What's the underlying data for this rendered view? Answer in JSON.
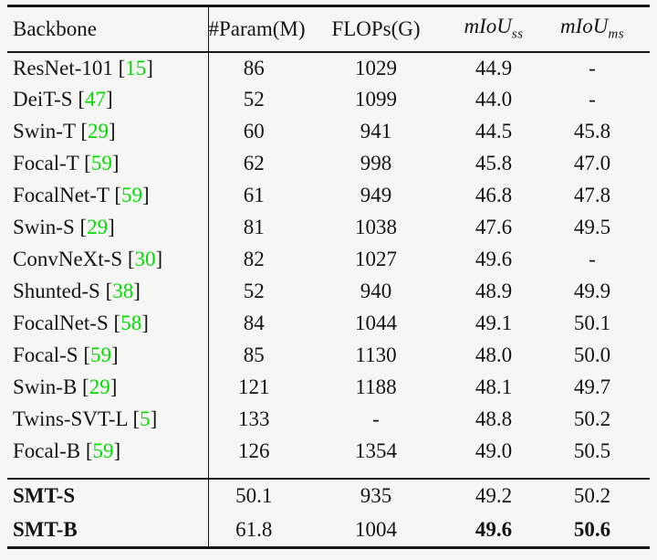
{
  "colors": {
    "citation_green": "#00dd00",
    "rule_color": "#161616",
    "background": "#f6f6f4"
  },
  "table": {
    "headers": {
      "backbone": "Backbone",
      "param": "#Param(M)",
      "flops": "FLOPs(G)",
      "miou_base": "mIoU",
      "miou_ss_sub": "ss",
      "miou_ms_sub": "ms"
    },
    "rows": [
      {
        "name": "ResNet-101",
        "cite": "15",
        "param": "86",
        "flops": "1029",
        "ss": "44.9",
        "ms": "-"
      },
      {
        "name": "DeiT-S",
        "cite": "47",
        "param": "52",
        "flops": "1099",
        "ss": "44.0",
        "ms": "-"
      },
      {
        "name": "Swin-T",
        "cite": "29",
        "param": "60",
        "flops": "941",
        "ss": "44.5",
        "ms": "45.8"
      },
      {
        "name": "Focal-T",
        "cite": "59",
        "param": "62",
        "flops": "998",
        "ss": "45.8",
        "ms": "47.0"
      },
      {
        "name": "FocalNet-T",
        "cite": "59",
        "param": "61",
        "flops": "949",
        "ss": "46.8",
        "ms": "47.8"
      },
      {
        "name": "Swin-S",
        "cite": "29",
        "param": "81",
        "flops": "1038",
        "ss": "47.6",
        "ms": "49.5"
      },
      {
        "name": "ConvNeXt-S",
        "cite": "30",
        "param": "82",
        "flops": "1027",
        "ss": "49.6",
        "ms": "-"
      },
      {
        "name": "Shunted-S",
        "cite": "38",
        "param": "52",
        "flops": "940",
        "ss": "48.9",
        "ms": "49.9"
      },
      {
        "name": "FocalNet-S",
        "cite": "58",
        "param": "84",
        "flops": "1044",
        "ss": "49.1",
        "ms": "50.1"
      },
      {
        "name": "Focal-S",
        "cite": "59",
        "param": "85",
        "flops": "1130",
        "ss": "48.0",
        "ms": "50.0"
      },
      {
        "name": "Swin-B",
        "cite": "29",
        "param": "121",
        "flops": "1188",
        "ss": "48.1",
        "ms": "49.7"
      },
      {
        "name": "Twins-SVT-L",
        "cite": "5",
        "param": "133",
        "flops": "-",
        "ss": "48.8",
        "ms": "50.2"
      },
      {
        "name": "Focal-B",
        "cite": "59",
        "param": "126",
        "flops": "1354",
        "ss": "49.0",
        "ms": "50.5"
      }
    ],
    "smt_rows": [
      {
        "name": "SMT-S",
        "param": "50.1",
        "flops": "935",
        "ss": "49.2",
        "ms": "50.2",
        "bold": [
          "name"
        ]
      },
      {
        "name": "SMT-B",
        "param": "61.8",
        "flops": "1004",
        "ss": "49.6",
        "ms": "50.6",
        "bold": [
          "name",
          "ss",
          "ms"
        ]
      }
    ]
  }
}
